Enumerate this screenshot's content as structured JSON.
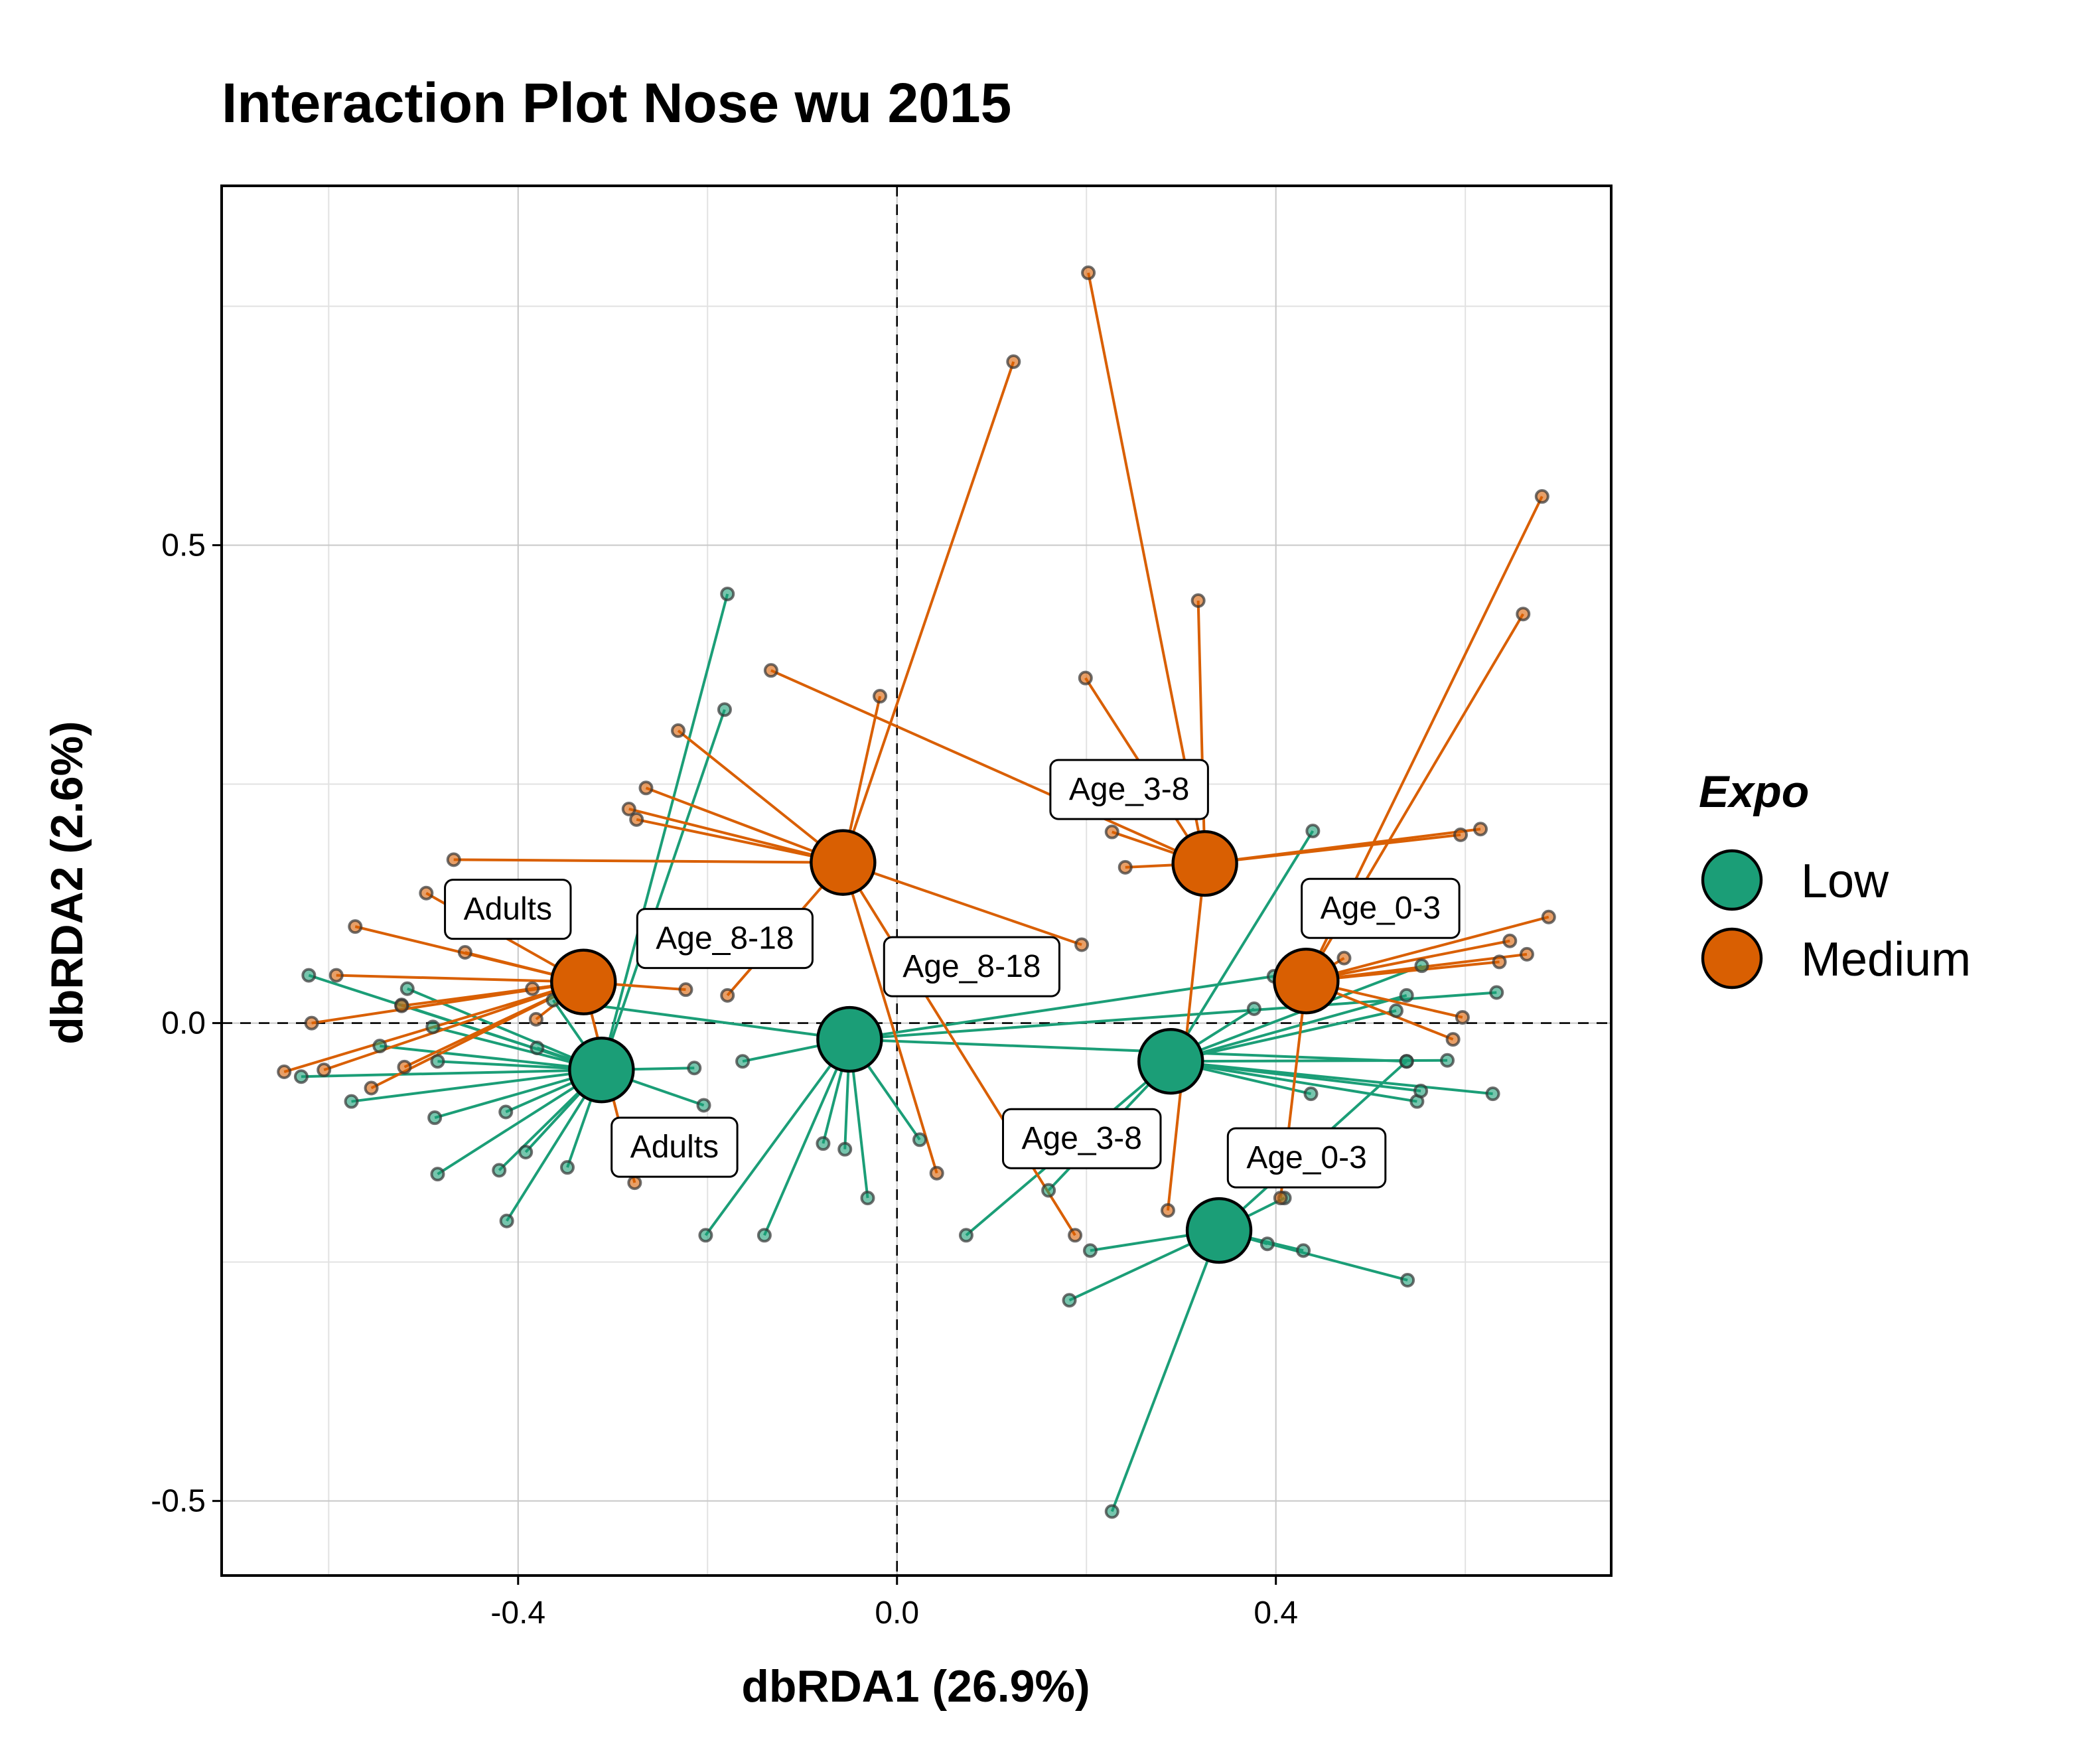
{
  "chart_data": {
    "type": "scatter",
    "title": "Interaction Plot Nose wu 2015",
    "x_label": "dbRDA1 (26.9%)",
    "y_label": "dbRDA2 (2.6%)",
    "legend_title": "Expo",
    "legend": "right",
    "grid": true,
    "xlim": [
      -0.713,
      0.754
    ],
    "ylim": [
      -0.578,
      0.876
    ],
    "xticks": [
      -0.4,
      {
        "value": 0,
        "label": "0.0"
      },
      0.4
    ],
    "yticks": [
      -0.5,
      {
        "value": 0,
        "label": "0.0"
      },
      0.5
    ],
    "series": [
      {
        "name": "Low",
        "color": "#1B9E77",
        "groups": [
          {
            "label": "Adults",
            "centroid_x": -0.312,
            "centroid_y": -0.049,
            "x": [
              -0.621,
              -0.629,
              -0.576,
              -0.546,
              -0.517,
              -0.523,
              -0.49,
              -0.485,
              -0.485,
              -0.488,
              -0.413,
              -0.42,
              -0.412,
              -0.392,
              -0.348,
              -0.363,
              -0.214,
              -0.204,
              -0.179,
              -0.182,
              -0.38
            ],
            "y": [
              0.05,
              -0.056,
              -0.082,
              -0.024,
              0.036,
              0.019,
              -0.004,
              -0.04,
              -0.158,
              -0.099,
              -0.093,
              -0.154,
              -0.207,
              -0.135,
              -0.151,
              0.024,
              -0.047,
              -0.086,
              0.449,
              0.328,
              -0.026
            ]
          },
          {
            "label": "Age_8-18",
            "centroid_x": -0.05,
            "centroid_y": -0.017,
            "x": [
              -0.202,
              -0.14,
              -0.031,
              -0.078,
              -0.055,
              0.024,
              -0.163,
              0.633,
              0.538,
              0.398,
              -0.345
            ],
            "y": [
              -0.222,
              -0.222,
              -0.183,
              -0.126,
              -0.132,
              -0.122,
              -0.04,
              0.032,
              -0.04,
              0.049,
              0.022
            ]
          },
          {
            "label": "Age_3-8",
            "centroid_x": 0.289,
            "centroid_y": -0.04,
            "x": [
              0.439,
              0.554,
              0.527,
              0.538,
              0.581,
              0.629,
              0.549,
              0.437,
              0.377,
              0.073,
              0.16,
              0.553
            ],
            "y": [
              0.201,
              0.06,
              0.013,
              0.029,
              -0.039,
              -0.074,
              -0.082,
              -0.074,
              0.015,
              -0.222,
              -0.175,
              -0.071
            ]
          },
          {
            "label": "Age_0-3",
            "centroid_x": 0.34,
            "centroid_y": -0.217,
            "x": [
              0.227,
              0.182,
              0.204,
              0.391,
              0.429,
              0.539,
              0.409,
              0.335,
              0.538
            ],
            "y": [
              -0.511,
              -0.29,
              -0.238,
              -0.231,
              -0.238,
              -0.269,
              -0.183,
              -0.196,
              -0.04
            ]
          }
        ]
      },
      {
        "name": "Medium",
        "color": "#D95F02",
        "groups": [
          {
            "label": "Adults",
            "centroid_x": -0.331,
            "centroid_y": 0.043,
            "x": [
              -0.647,
              -0.605,
              -0.572,
              -0.592,
              -0.618,
              -0.555,
              -0.52,
              -0.497,
              -0.456,
              -0.385,
              -0.381,
              -0.277,
              -0.223,
              -0.523
            ],
            "y": [
              -0.051,
              -0.049,
              0.101,
              0.05,
              0.0,
              -0.068,
              -0.046,
              0.136,
              0.074,
              0.036,
              0.004,
              -0.167,
              0.035,
              0.018
            ]
          },
          {
            "label": "Age_8-18",
            "centroid_x": -0.057,
            "centroid_y": 0.168,
            "x": [
              0.123,
              -0.018,
              -0.231,
              -0.265,
              -0.283,
              -0.275,
              0.042,
              0.188,
              0.195,
              -0.179,
              -0.468
            ],
            "y": [
              0.692,
              0.342,
              0.306,
              0.246,
              0.224,
              0.213,
              -0.157,
              -0.222,
              0.082,
              0.029,
              0.171
            ]
          },
          {
            "label": "Age_3-8",
            "centroid_x": 0.325,
            "centroid_y": 0.167,
            "x": [
              0.202,
              0.318,
              0.227,
              0.241,
              0.595,
              0.616,
              -0.133,
              0.286,
              0.199
            ],
            "y": [
              0.785,
              0.442,
              0.2,
              0.163,
              0.197,
              0.203,
              0.369,
              -0.196,
              0.361
            ]
          },
          {
            "label": "Age_0-3",
            "centroid_x": 0.432,
            "centroid_y": 0.044,
            "x": [
              0.681,
              0.661,
              0.688,
              0.665,
              0.636,
              0.597,
              0.587,
              0.472,
              0.414,
              0.405,
              0.647
            ],
            "y": [
              0.551,
              0.428,
              0.111,
              0.072,
              0.064,
              0.006,
              -0.017,
              0.068,
              0.047,
              -0.183,
              0.086
            ]
          }
        ]
      }
    ]
  }
}
